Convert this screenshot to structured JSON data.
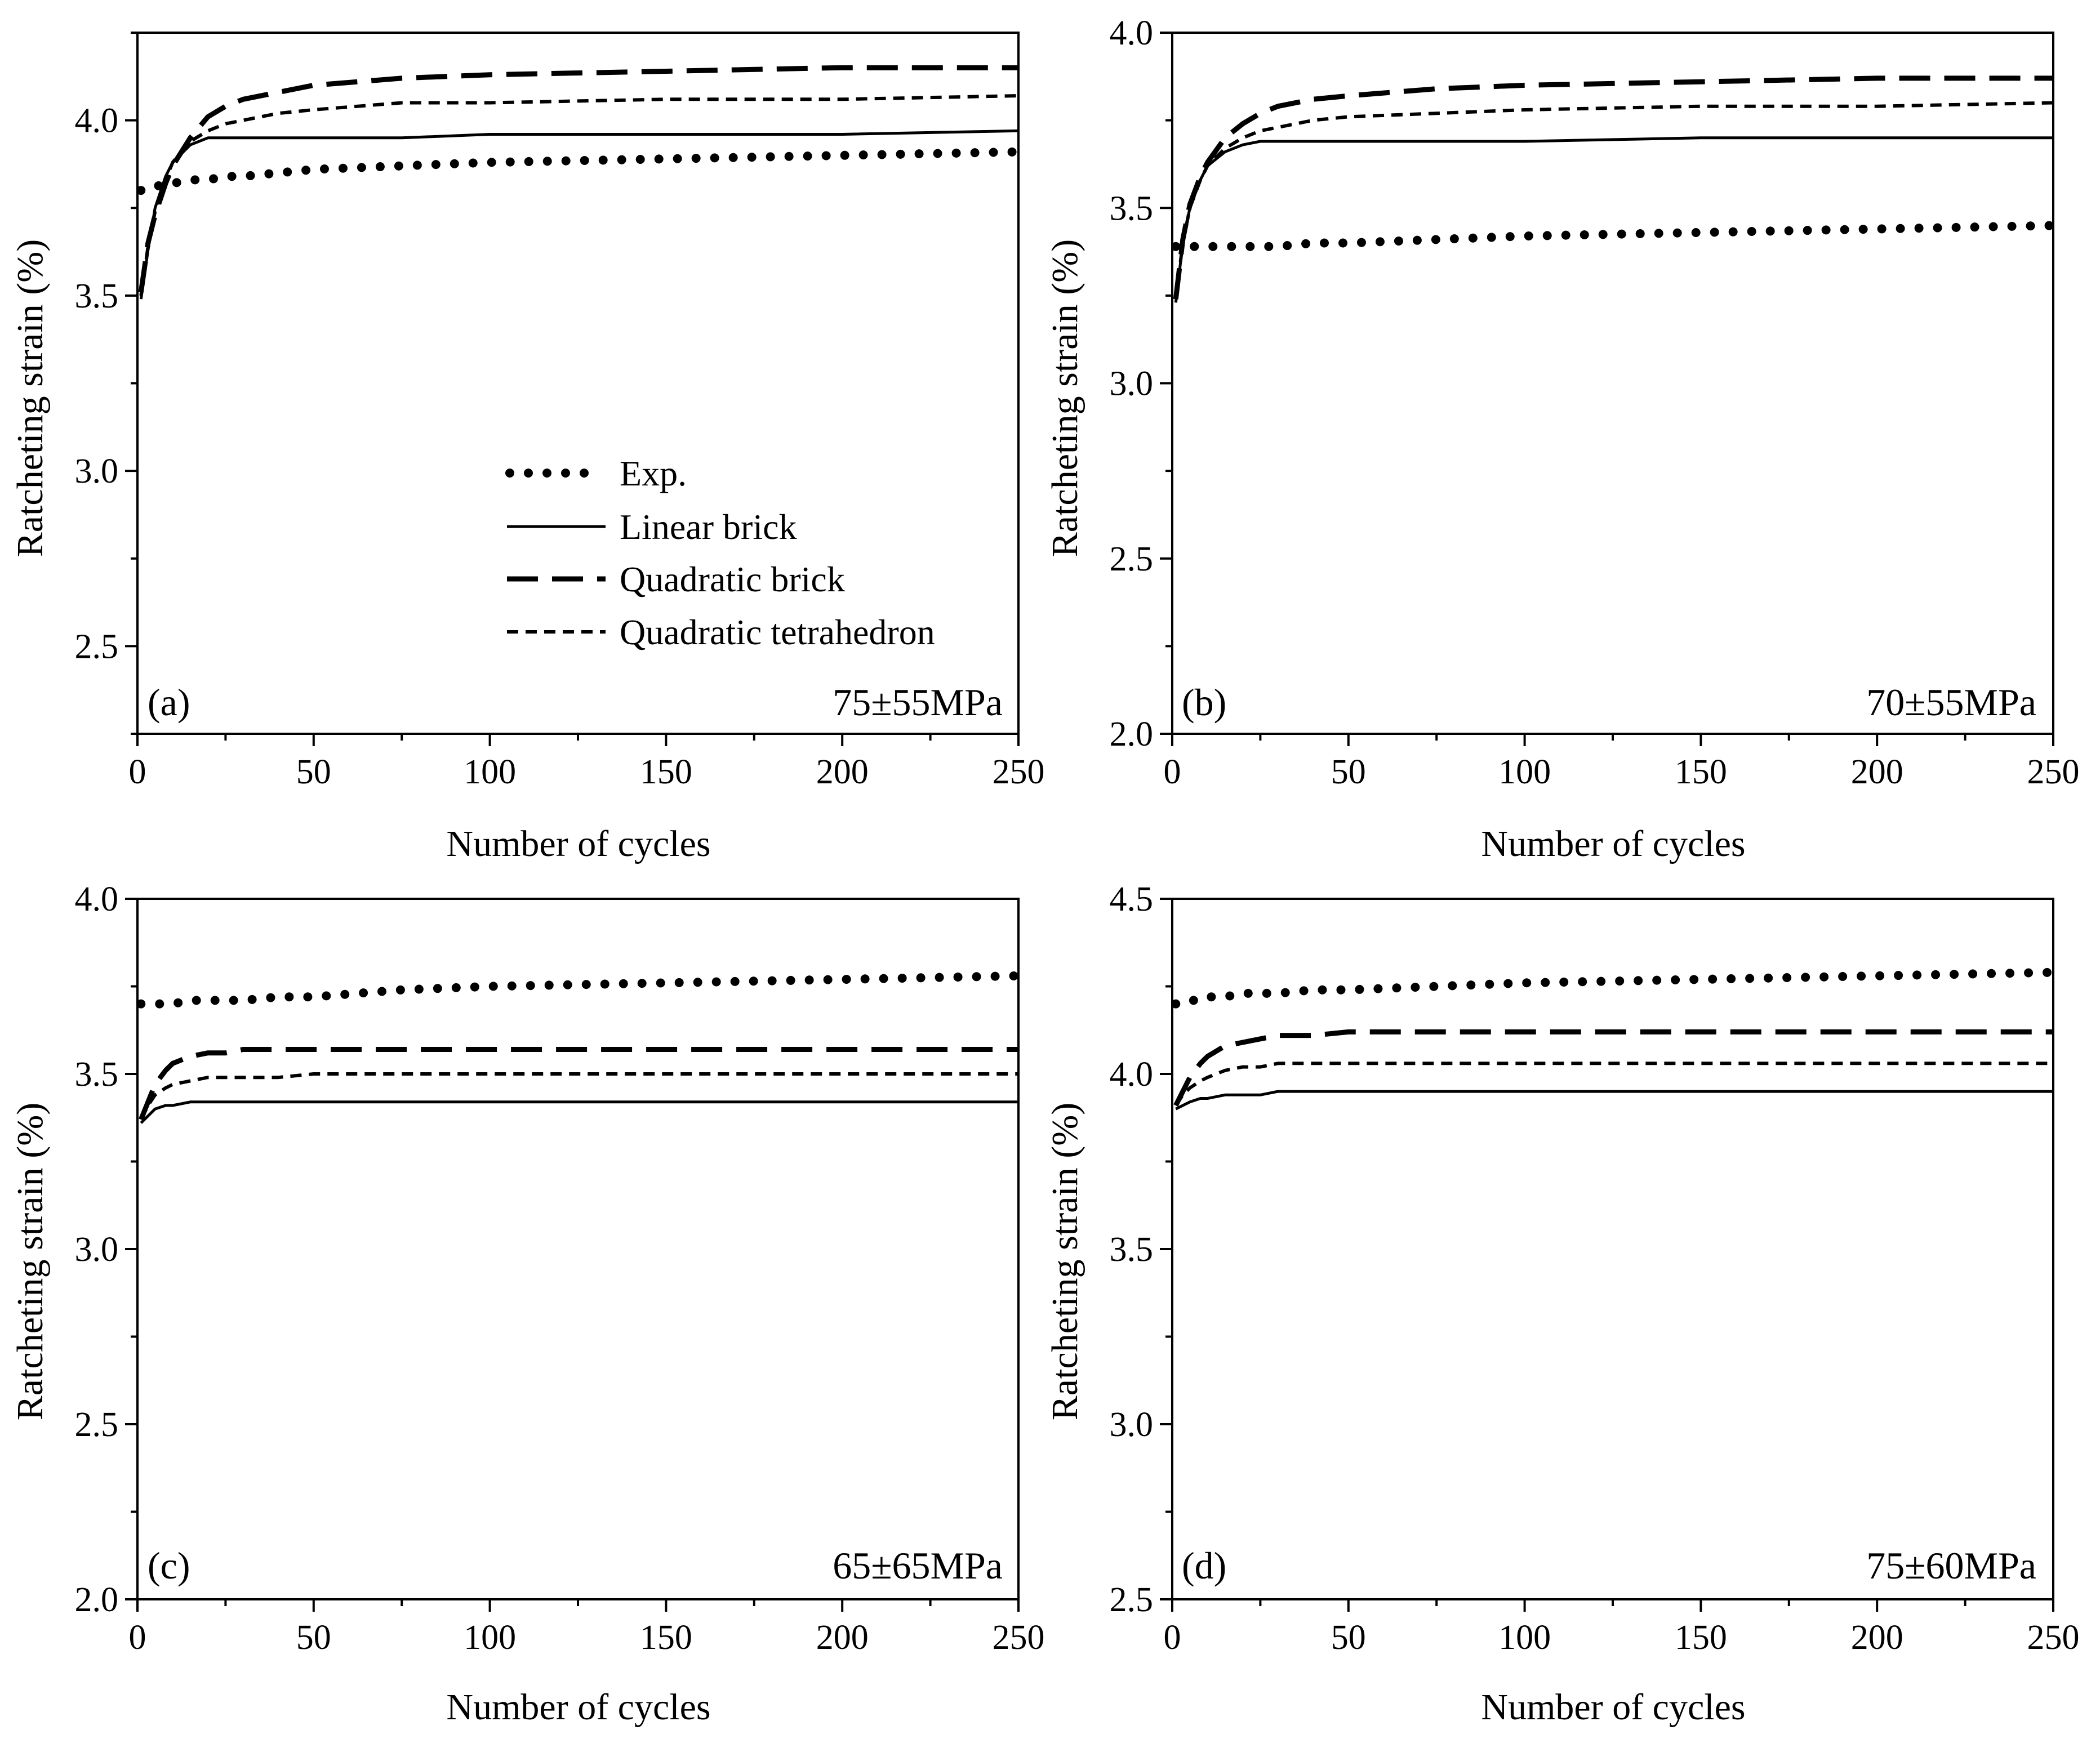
{
  "chart_data": [
    {
      "type": "line",
      "panel_label": "(a)",
      "condition": "75±55MPa",
      "xlabel": "Number of cycles",
      "ylabel": "Ratcheting strain (%)",
      "xlim": [
        0,
        250
      ],
      "ylim": [
        2.25,
        4.25
      ],
      "xticks": [
        "0",
        "50",
        "100",
        "150",
        "200",
        "250"
      ],
      "yticks": [
        "2.5",
        "3.0",
        "3.5",
        "4.0"
      ],
      "ytick_values": [
        2.5,
        3.0,
        3.5,
        4.0
      ],
      "show_legend": true,
      "x": [
        1,
        3,
        5,
        8,
        10,
        15,
        20,
        25,
        30,
        40,
        50,
        75,
        100,
        150,
        200,
        250
      ],
      "series": [
        {
          "name": "Exp.",
          "style": "exp",
          "values": [
            3.8,
            3.81,
            3.81,
            3.82,
            3.82,
            3.83,
            3.83,
            3.84,
            3.84,
            3.85,
            3.86,
            3.87,
            3.88,
            3.89,
            3.9,
            3.91
          ]
        },
        {
          "name": "Linear brick",
          "style": "linear",
          "values": [
            3.49,
            3.63,
            3.75,
            3.84,
            3.88,
            3.93,
            3.95,
            3.95,
            3.95,
            3.95,
            3.95,
            3.95,
            3.96,
            3.96,
            3.96,
            3.97
          ]
        },
        {
          "name": "Quadratic brick",
          "style": "qbrick",
          "values": [
            3.51,
            3.65,
            3.73,
            3.82,
            3.87,
            3.95,
            4.01,
            4.04,
            4.06,
            4.08,
            4.1,
            4.12,
            4.13,
            4.14,
            4.15,
            4.15
          ]
        },
        {
          "name": "Quadratic tetrahedron",
          "style": "qtet",
          "values": [
            3.5,
            3.64,
            3.74,
            3.83,
            3.88,
            3.94,
            3.97,
            3.99,
            4.0,
            4.02,
            4.03,
            4.05,
            4.05,
            4.06,
            4.06,
            4.07
          ]
        }
      ]
    },
    {
      "type": "line",
      "panel_label": "(b)",
      "condition": "70±55MPa",
      "xlabel": "Number of cycles",
      "ylabel": "Ratcheting strain (%)",
      "xlim": [
        0,
        250
      ],
      "ylim": [
        2.0,
        4.0
      ],
      "xticks": [
        "0",
        "50",
        "100",
        "150",
        "200",
        "250"
      ],
      "yticks": [
        "2.0",
        "2.5",
        "3.0",
        "3.5",
        "4.0"
      ],
      "ytick_values": [
        2.0,
        2.5,
        3.0,
        3.5,
        4.0
      ],
      "show_legend": false,
      "x": [
        1,
        3,
        5,
        8,
        10,
        15,
        20,
        25,
        30,
        40,
        50,
        75,
        100,
        150,
        200,
        250
      ],
      "series": [
        {
          "name": "Exp.",
          "style": "exp",
          "values": [
            3.39,
            3.39,
            3.39,
            3.39,
            3.39,
            3.39,
            3.39,
            3.39,
            3.39,
            3.4,
            3.4,
            3.41,
            3.42,
            3.43,
            3.44,
            3.45
          ]
        },
        {
          "name": "Linear brick",
          "style": "linear",
          "values": [
            3.23,
            3.4,
            3.5,
            3.58,
            3.62,
            3.66,
            3.68,
            3.69,
            3.69,
            3.69,
            3.69,
            3.69,
            3.69,
            3.7,
            3.7,
            3.7
          ]
        },
        {
          "name": "Quadratic brick",
          "style": "qbrick",
          "values": [
            3.24,
            3.41,
            3.51,
            3.59,
            3.63,
            3.7,
            3.74,
            3.77,
            3.79,
            3.81,
            3.82,
            3.84,
            3.85,
            3.86,
            3.87,
            3.87
          ]
        },
        {
          "name": "Quadratic tetrahedron",
          "style": "qtet",
          "values": [
            3.24,
            3.4,
            3.5,
            3.58,
            3.62,
            3.67,
            3.7,
            3.72,
            3.73,
            3.75,
            3.76,
            3.77,
            3.78,
            3.79,
            3.79,
            3.8
          ]
        }
      ]
    },
    {
      "type": "line",
      "panel_label": "(c)",
      "condition": "65±65MPa",
      "xlabel": "Number of cycles",
      "ylabel": "Ratcheting strain (%)",
      "xlim": [
        0,
        250
      ],
      "ylim": [
        2.0,
        4.0
      ],
      "xticks": [
        "0",
        "50",
        "100",
        "150",
        "200",
        "250"
      ],
      "yticks": [
        "2.0",
        "2.5",
        "3.0",
        "3.5",
        "4.0"
      ],
      "ytick_values": [
        2.0,
        2.5,
        3.0,
        3.5,
        4.0
      ],
      "show_legend": false,
      "x": [
        1,
        3,
        5,
        8,
        10,
        15,
        20,
        25,
        30,
        40,
        50,
        75,
        100,
        150,
        200,
        250
      ],
      "series": [
        {
          "name": "Exp.",
          "style": "exp",
          "values": [
            3.7,
            3.7,
            3.7,
            3.7,
            3.7,
            3.71,
            3.71,
            3.71,
            3.71,
            3.72,
            3.72,
            3.74,
            3.75,
            3.76,
            3.77,
            3.78
          ]
        },
        {
          "name": "Linear brick",
          "style": "linear",
          "values": [
            3.36,
            3.38,
            3.4,
            3.41,
            3.41,
            3.42,
            3.42,
            3.42,
            3.42,
            3.42,
            3.42,
            3.42,
            3.42,
            3.42,
            3.42,
            3.42
          ]
        },
        {
          "name": "Quadratic brick",
          "style": "qbrick",
          "values": [
            3.37,
            3.42,
            3.47,
            3.51,
            3.53,
            3.55,
            3.56,
            3.56,
            3.57,
            3.57,
            3.57,
            3.57,
            3.57,
            3.57,
            3.57,
            3.57
          ]
        },
        {
          "name": "Quadratic tetrahedron",
          "style": "qtet",
          "values": [
            3.37,
            3.41,
            3.44,
            3.46,
            3.47,
            3.48,
            3.49,
            3.49,
            3.49,
            3.49,
            3.5,
            3.5,
            3.5,
            3.5,
            3.5,
            3.5
          ]
        }
      ]
    },
    {
      "type": "line",
      "panel_label": "(d)",
      "condition": "75±60MPa",
      "xlabel": "Number of cycles",
      "ylabel": "Ratcheting strain (%)",
      "xlim": [
        0,
        250
      ],
      "ylim": [
        2.5,
        4.5
      ],
      "xticks": [
        "0",
        "50",
        "100",
        "150",
        "200",
        "250"
      ],
      "yticks": [
        "2.5",
        "3.0",
        "3.5",
        "4.0",
        "4.5"
      ],
      "ytick_values": [
        2.5,
        3.0,
        3.5,
        4.0,
        4.5
      ],
      "show_legend": false,
      "x": [
        1,
        3,
        5,
        8,
        10,
        15,
        20,
        25,
        30,
        40,
        50,
        75,
        100,
        150,
        200,
        250
      ],
      "series": [
        {
          "name": "Exp.",
          "style": "exp",
          "values": [
            4.2,
            4.21,
            4.21,
            4.21,
            4.22,
            4.22,
            4.23,
            4.23,
            4.23,
            4.24,
            4.24,
            4.25,
            4.26,
            4.27,
            4.28,
            4.29
          ]
        },
        {
          "name": "Linear brick",
          "style": "linear",
          "values": [
            3.9,
            3.91,
            3.92,
            3.93,
            3.93,
            3.94,
            3.94,
            3.94,
            3.95,
            3.95,
            3.95,
            3.95,
            3.95,
            3.95,
            3.95,
            3.95
          ]
        },
        {
          "name": "Quadratic brick",
          "style": "qbrick",
          "values": [
            3.91,
            3.95,
            3.99,
            4.03,
            4.05,
            4.08,
            4.09,
            4.1,
            4.11,
            4.11,
            4.12,
            4.12,
            4.12,
            4.12,
            4.12,
            4.12
          ]
        },
        {
          "name": "Quadratic tetrahedron",
          "style": "qtet",
          "values": [
            3.91,
            3.94,
            3.96,
            3.98,
            3.99,
            4.01,
            4.02,
            4.02,
            4.03,
            4.03,
            4.03,
            4.03,
            4.03,
            4.03,
            4.03,
            4.03
          ]
        }
      ]
    }
  ]
}
